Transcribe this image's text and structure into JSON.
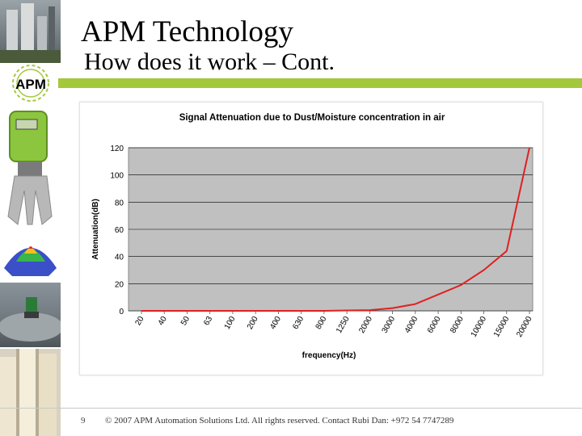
{
  "slide": {
    "title": "APM Technology",
    "subtitle": "How does it work – Cont.",
    "page_number": "9",
    "footer": "© 2007 APM Automation Solutions Ltd. All rights reserved. Contact Rubi Dan: +972 54 7747289",
    "logo_text": "APM",
    "accent_color": "#a4c83c"
  },
  "chart_data": {
    "type": "line",
    "title": "Signal Attenuation due to Dust/Moisture concentration in air",
    "xlabel": "frequency(Hz)",
    "ylabel": "Attenuation(dB)",
    "categories": [
      "20",
      "40",
      "50",
      "63",
      "100",
      "200",
      "400",
      "630",
      "800",
      "1250",
      "2000",
      "3000",
      "4000",
      "6000",
      "8000",
      "10000",
      "15000",
      "20000"
    ],
    "series": [
      {
        "color": "#e02020",
        "values": [
          0,
          0,
          0,
          0,
          0,
          0,
          0,
          0,
          0,
          0.3,
          0.5,
          2,
          5,
          12,
          19,
          30,
          44,
          120
        ]
      }
    ],
    "ylim": [
      0,
      120
    ],
    "yticks": [
      0,
      20,
      40,
      60,
      80,
      100,
      120
    ],
    "grid": true,
    "plot_background": "#c0c0c0"
  }
}
